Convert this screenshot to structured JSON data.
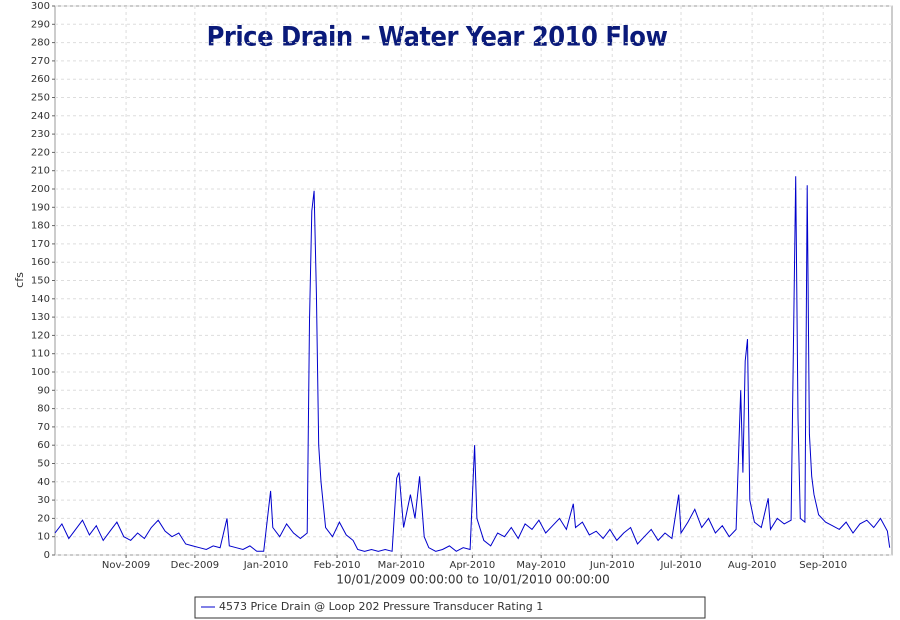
{
  "chart_data": {
    "type": "line",
    "title": "Price Drain - Water Year 2010 Flow",
    "y_label": "cfs",
    "x_label": "10/01/2009 00:00:00 to 10/01/2010 00:00:00",
    "x": [
      "2009-10-01",
      "2009-10-04",
      "2009-10-07",
      "2009-10-10",
      "2009-10-13",
      "2009-10-16",
      "2009-10-19",
      "2009-10-22",
      "2009-10-25",
      "2009-10-28",
      "2009-10-31",
      "2009-11-03",
      "2009-11-06",
      "2009-11-09",
      "2009-11-12",
      "2009-11-15",
      "2009-11-18",
      "2009-11-21",
      "2009-11-24",
      "2009-11-27",
      "2009-11-30",
      "2009-12-03",
      "2009-12-06",
      "2009-12-09",
      "2009-12-12",
      "2009-12-15",
      "2009-12-16",
      "2009-12-19",
      "2009-12-22",
      "2009-12-25",
      "2009-12-28",
      "2009-12-31",
      "2010-01-03",
      "2010-01-04",
      "2010-01-07",
      "2010-01-10",
      "2010-01-13",
      "2010-01-16",
      "2010-01-19",
      "2010-01-20",
      "2010-01-21",
      "2010-01-22",
      "2010-01-23",
      "2010-01-24",
      "2010-01-25",
      "2010-01-27",
      "2010-01-30",
      "2010-02-02",
      "2010-02-05",
      "2010-02-08",
      "2010-02-10",
      "2010-02-13",
      "2010-02-16",
      "2010-02-19",
      "2010-02-22",
      "2010-02-25",
      "2010-02-27",
      "2010-02-28",
      "2010-03-02",
      "2010-03-05",
      "2010-03-07",
      "2010-03-09",
      "2010-03-11",
      "2010-03-13",
      "2010-03-16",
      "2010-03-19",
      "2010-03-22",
      "2010-03-25",
      "2010-03-28",
      "2010-03-31",
      "2010-04-02",
      "2010-04-03",
      "2010-04-06",
      "2010-04-09",
      "2010-04-12",
      "2010-04-15",
      "2010-04-18",
      "2010-04-21",
      "2010-04-24",
      "2010-04-27",
      "2010-04-30",
      "2010-05-03",
      "2010-05-06",
      "2010-05-09",
      "2010-05-12",
      "2010-05-15",
      "2010-05-16",
      "2010-05-19",
      "2010-05-22",
      "2010-05-25",
      "2010-05-28",
      "2010-05-31",
      "2010-06-03",
      "2010-06-06",
      "2010-06-09",
      "2010-06-12",
      "2010-06-15",
      "2010-06-18",
      "2010-06-21",
      "2010-06-24",
      "2010-06-27",
      "2010-06-30",
      "2010-07-01",
      "2010-07-04",
      "2010-07-07",
      "2010-07-10",
      "2010-07-13",
      "2010-07-16",
      "2010-07-19",
      "2010-07-22",
      "2010-07-25",
      "2010-07-27",
      "2010-07-28",
      "2010-07-29",
      "2010-07-30",
      "2010-07-31",
      "2010-08-02",
      "2010-08-05",
      "2010-08-08",
      "2010-08-09",
      "2010-08-12",
      "2010-08-15",
      "2010-08-18",
      "2010-08-20",
      "2010-08-21",
      "2010-08-22",
      "2010-08-24",
      "2010-08-25",
      "2010-08-26",
      "2010-08-27",
      "2010-08-28",
      "2010-08-30",
      "2010-09-02",
      "2010-09-05",
      "2010-09-08",
      "2010-09-11",
      "2010-09-14",
      "2010-09-17",
      "2010-09-20",
      "2010-09-23",
      "2010-09-26",
      "2010-09-29",
      "2010-09-30"
    ],
    "series": [
      {
        "name": "4573 Price Drain @ Loop 202 Pressure Transducer Rating 1",
        "color": "#0000cc",
        "values": [
          12,
          17,
          9,
          14,
          19,
          11,
          16,
          8,
          13,
          18,
          10,
          8,
          12,
          9,
          15,
          19,
          13,
          10,
          12,
          6,
          5,
          4,
          3,
          5,
          4,
          20,
          5,
          4,
          3,
          5,
          2,
          2,
          35,
          15,
          10,
          17,
          12,
          9,
          12,
          128,
          188,
          199,
          143,
          60,
          40,
          15,
          10,
          18,
          11,
          8,
          3,
          2,
          3,
          2,
          3,
          2,
          42,
          45,
          15,
          33,
          20,
          43,
          10,
          4,
          2,
          3,
          5,
          2,
          4,
          3,
          60,
          20,
          8,
          5,
          12,
          10,
          15,
          9,
          17,
          14,
          19,
          12,
          16,
          20,
          14,
          28,
          15,
          18,
          11,
          13,
          9,
          14,
          8,
          12,
          15,
          6,
          10,
          14,
          8,
          12,
          9,
          33,
          12,
          18,
          25,
          15,
          20,
          12,
          16,
          10,
          14,
          90,
          45,
          106,
          118,
          30,
          18,
          15,
          31,
          14,
          20,
          17,
          19,
          207,
          75,
          20,
          18,
          202,
          66,
          43,
          33,
          22,
          18,
          16,
          14,
          18,
          12,
          17,
          19,
          15,
          20,
          13,
          4
        ]
      }
    ],
    "xlim": [
      "2009-10-01",
      "2010-10-01"
    ],
    "xticks": [
      {
        "value": "2009-11-01",
        "label": "Nov-2009"
      },
      {
        "value": "2009-12-01",
        "label": "Dec-2009"
      },
      {
        "value": "2010-01-01",
        "label": "Jan-2010"
      },
      {
        "value": "2010-02-01",
        "label": "Feb-2010"
      },
      {
        "value": "2010-03-01",
        "label": "Mar-2010"
      },
      {
        "value": "2010-04-01",
        "label": "Apr-2010"
      },
      {
        "value": "2010-05-01",
        "label": "May-2010"
      },
      {
        "value": "2010-06-01",
        "label": "Jun-2010"
      },
      {
        "value": "2010-07-01",
        "label": "Jul-2010"
      },
      {
        "value": "2010-08-01",
        "label": "Aug-2010"
      },
      {
        "value": "2010-09-01",
        "label": "Sep-2010"
      }
    ],
    "ylim": [
      0,
      300
    ],
    "yticks": [
      0,
      10,
      20,
      30,
      40,
      50,
      60,
      70,
      80,
      90,
      100,
      110,
      120,
      130,
      140,
      150,
      160,
      170,
      180,
      190,
      200,
      210,
      220,
      230,
      240,
      250,
      260,
      270,
      280,
      290,
      300
    ],
    "grid": true
  }
}
